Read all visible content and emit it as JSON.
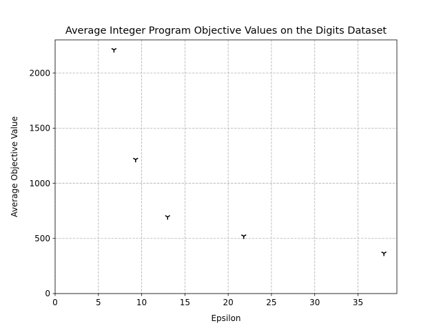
{
  "chart_data": {
    "type": "scatter",
    "title": "Average Integer Program Objective Values on the Digits Dataset",
    "xlabel": "Epsilon",
    "ylabel": "Average Objective Value",
    "xlim": [
      0,
      39.5
    ],
    "ylim": [
      0,
      2300
    ],
    "xticks": [
      0,
      5,
      10,
      15,
      20,
      25,
      30,
      35
    ],
    "yticks": [
      0,
      500,
      1000,
      1500,
      2000
    ],
    "grid": true,
    "marker": "tri-down",
    "marker_color": "#000000",
    "series": [
      {
        "x": [
          6.8,
          9.3,
          13.0,
          21.8,
          38.0
        ],
        "y": [
          2210,
          1215,
          695,
          520,
          365
        ]
      }
    ]
  }
}
